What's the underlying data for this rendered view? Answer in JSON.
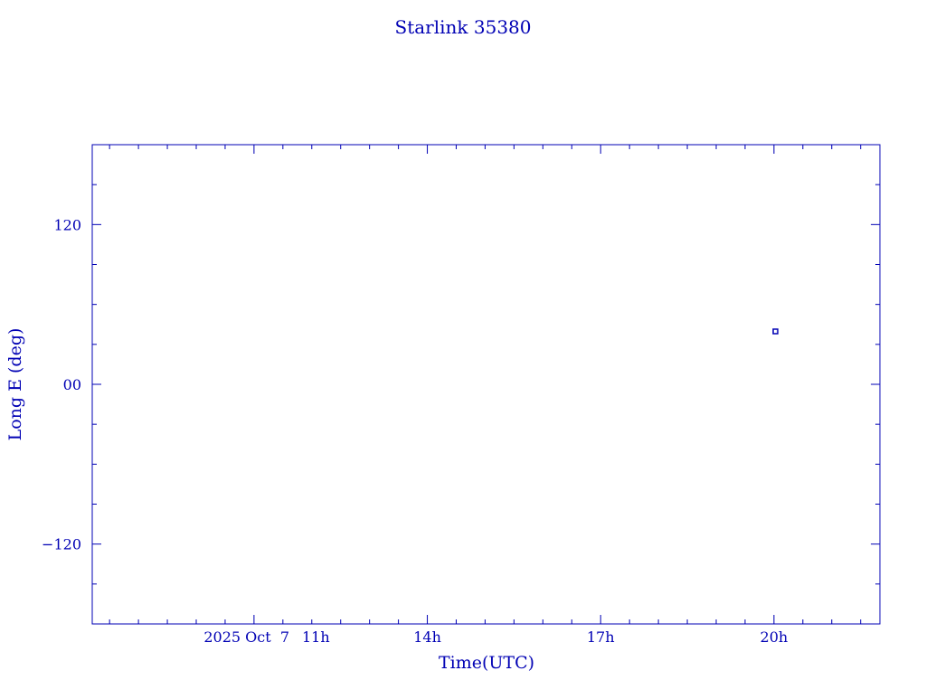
{
  "chart_data": {
    "type": "scatter",
    "title": "Starlink 35380",
    "xlabel": "Time(UTC)",
    "ylabel": "Long E (deg)",
    "x_date_label": "2025 Oct  7",
    "xlim": [
      "2025-10-07T08:12",
      "2025-10-07T21:50"
    ],
    "ylim": [
      -180,
      180
    ],
    "x_ticks": [
      {
        "value": "2025-10-07T11:00",
        "label": "11h"
      },
      {
        "value": "2025-10-07T14:00",
        "label": "14h"
      },
      {
        "value": "2025-10-07T17:00",
        "label": "17h"
      },
      {
        "value": "2025-10-07T20:00",
        "label": "20h"
      }
    ],
    "x_minor_step_minutes": 30,
    "y_ticks": [
      {
        "value": 120,
        "label": "120"
      },
      {
        "value": 0,
        "label": "00"
      },
      {
        "value": -120,
        "label": "−120"
      }
    ],
    "y_minor_step": 30,
    "grid": false,
    "points": [
      {
        "x": "2025-10-07T20:02",
        "y": 39.4
      }
    ],
    "color": "#0000b4"
  }
}
